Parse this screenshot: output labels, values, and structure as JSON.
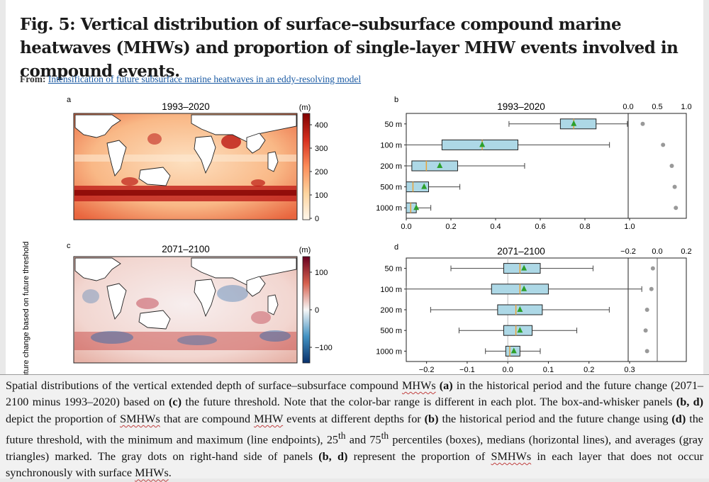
{
  "figure": {
    "title": "Fig. 5: Vertical distribution of surface–subsurface compound marine heatwaves (MHWs) and proportion of single-layer MHW events involved in compound events.",
    "from_label": "From:",
    "from_link": "Intensification of future subsurface marine heatwaves in an eddy-resolving model"
  },
  "panels": {
    "a": {
      "letter": "a",
      "title": "1993–2020",
      "unit": "(m)",
      "colorbar_ticks": [
        "400",
        "300",
        "200",
        "100",
        "0"
      ]
    },
    "c": {
      "letter": "c",
      "title": "2071–2100",
      "unit": "(m)",
      "colorbar_ticks": [
        "100",
        "0",
        "−100"
      ],
      "side_label": "Future change based on future threshold"
    },
    "b": {
      "letter": "b",
      "title": "1993–2020"
    },
    "d": {
      "letter": "d",
      "title": "2071–2100"
    }
  },
  "colors": {
    "box_fill": "#add8e6",
    "median": "#e8a33a",
    "mean_marker": "#2ca02c",
    "dot": "#999999",
    "warm": "#b2182b",
    "cool": "#2166ac"
  },
  "chart_data": [
    {
      "panel": "b",
      "type": "box",
      "title": "1993–2020",
      "categories": [
        "50 m",
        "100 m",
        "200 m",
        "500 m",
        "1000 m"
      ],
      "xlim": [
        0.0,
        1.0
      ],
      "xticks": [
        "0.0",
        "0.2",
        "0.4",
        "0.6",
        "0.8",
        "1.0"
      ],
      "boxes": [
        {
          "min": 0.46,
          "q1": 0.69,
          "median": 0.75,
          "q3": 0.85,
          "max": 0.99,
          "mean": 0.75
        },
        {
          "min": 0.0,
          "q1": 0.16,
          "median": 0.34,
          "q3": 0.5,
          "max": 0.91,
          "mean": 0.34
        },
        {
          "min": 0.0,
          "q1": 0.025,
          "median": 0.09,
          "q3": 0.23,
          "max": 0.53,
          "mean": 0.15
        },
        {
          "min": 0.0,
          "q1": 0.0,
          "median": 0.03,
          "q3": 0.1,
          "max": 0.24,
          "mean": 0.08
        },
        {
          "min": 0.0,
          "q1": 0.0,
          "median": 0.02,
          "q3": 0.045,
          "max": 0.11,
          "mean": 0.045
        }
      ],
      "side_axis": {
        "xlim": [
          0.0,
          1.0
        ],
        "xticks": [
          "0.0",
          "0.5",
          "1.0"
        ],
        "values": [
          0.25,
          0.6,
          0.75,
          0.8,
          0.82
        ]
      }
    },
    {
      "panel": "d",
      "type": "box",
      "title": "2071–2100",
      "categories": [
        "50 m",
        "100 m",
        "200 m",
        "500 m",
        "1000 m"
      ],
      "xlim": [
        -0.25,
        0.3
      ],
      "xticks": [
        "−0.2",
        "−0.1",
        "0.0",
        "0.1",
        "0.2",
        "0.3"
      ],
      "boxes": [
        {
          "min": -0.14,
          "q1": -0.01,
          "median": 0.03,
          "q3": 0.08,
          "max": 0.21,
          "mean": 0.04
        },
        {
          "min": -0.25,
          "q1": -0.04,
          "median": 0.03,
          "q3": 0.1,
          "max": 0.33,
          "mean": 0.04
        },
        {
          "min": -0.19,
          "q1": -0.025,
          "median": 0.02,
          "q3": 0.085,
          "max": 0.25,
          "mean": 0.03
        },
        {
          "min": -0.12,
          "q1": -0.01,
          "median": 0.02,
          "q3": 0.06,
          "max": 0.17,
          "mean": 0.03
        },
        {
          "min": -0.055,
          "q1": -0.005,
          "median": 0.005,
          "q3": 0.03,
          "max": 0.08,
          "mean": 0.015
        }
      ],
      "side_axis": {
        "xlim": [
          -0.2,
          0.2
        ],
        "xticks": [
          "−0.2",
          "0.0",
          "0.2"
        ],
        "values": [
          -0.03,
          -0.04,
          -0.07,
          -0.08,
          -0.07
        ]
      }
    }
  ],
  "caption": {
    "p1": "Spatial distributions of the vertical extended depth of surface–subsurface compound ",
    "mhws1": "MHWs",
    "p2": " ",
    "a": "(a)",
    "p3": " in the historical period and the future change (2071–2100 minus 1993–2020) based on ",
    "c": "(c)",
    "p4": " the future threshold. Note that the color-bar range is different in each plot. The box-and-whisker panels ",
    "bd1": "(b, d)",
    "p5": " depict the proportion of ",
    "smhws1": "SMHWs",
    "p6": " that are compound ",
    "mhw1": "MHW",
    "p7": " events at different depths for ",
    "b": "(b)",
    "p8": " the historical period and the future change using ",
    "d": "(d)",
    "p9": " the future threshold, with the minimum and maximum (line endpoints), 25",
    "th1": "th",
    "p10": " and 75",
    "th2": "th",
    "p11": " percentiles (boxes), medians (horizontal lines), and averages (gray triangles) marked. The gray dots on right-hand side of panels ",
    "bd2": "(b, d)",
    "p12": " represent the proportion of ",
    "smhws2": "SMHWs",
    "p13": " in each layer that does not occur synchronously with surface ",
    "mhws2": "MHWs",
    "p14": "."
  }
}
